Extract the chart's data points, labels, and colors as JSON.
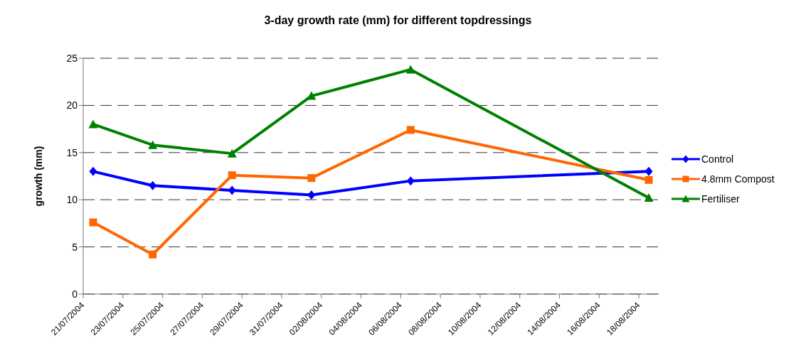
{
  "chart_data": {
    "type": "line",
    "title": "3-day growth rate (mm) for different topdressings",
    "ylabel": "growth (mm)",
    "x": [
      "2004-07-21T12:00",
      "2004-07-24T12:00",
      "2004-07-28T12:00",
      "2004-08-01T12:00",
      "2004-08-06T12:00",
      "2004-08-18T12:00"
    ],
    "series": [
      {
        "name": "Control",
        "color": "#0000ff",
        "marker": "diamond",
        "values": [
          13,
          11.5,
          11,
          10.5,
          12,
          13
        ]
      },
      {
        "name": "4.8mm Compost",
        "color": "#ff6600",
        "marker": "square",
        "values": [
          7.6,
          4.2,
          12.6,
          12.3,
          17.4,
          12.1
        ]
      },
      {
        "name": "Fertiliser",
        "color": "#008000",
        "marker": "triangle",
        "values": [
          18,
          15.8,
          14.9,
          21,
          23.8,
          10.2
        ]
      }
    ],
    "xlim": [
      "2004-07-21",
      "2004-08-19"
    ],
    "xticks": [
      {
        "value": "2004-07-21",
        "label": "21/07/2004"
      },
      {
        "value": "2004-07-23",
        "label": "23/07/2004"
      },
      {
        "value": "2004-07-25",
        "label": "25/07/2004"
      },
      {
        "value": "2004-07-27",
        "label": "27/07/2004"
      },
      {
        "value": "2004-07-29",
        "label": "29/07/2004"
      },
      {
        "value": "2004-07-31",
        "label": "31/07/2004"
      },
      {
        "value": "2004-08-02",
        "label": "02/08/2004"
      },
      {
        "value": "2004-08-04",
        "label": "04/08/2004"
      },
      {
        "value": "2004-08-06",
        "label": "06/08/2004"
      },
      {
        "value": "2004-08-08",
        "label": "08/08/2004"
      },
      {
        "value": "2004-08-10",
        "label": "10/08/2004"
      },
      {
        "value": "2004-08-12",
        "label": "12/08/2004"
      },
      {
        "value": "2004-08-14",
        "label": "14/08/2004"
      },
      {
        "value": "2004-08-16",
        "label": "16/08/2004"
      },
      {
        "value": "2004-08-18",
        "label": "18/08/2004"
      }
    ],
    "ylim": [
      0,
      25
    ],
    "yticks": [
      0,
      5,
      10,
      15,
      20,
      25
    ],
    "grid": "y",
    "legend": "right",
    "line_style": "solid"
  }
}
